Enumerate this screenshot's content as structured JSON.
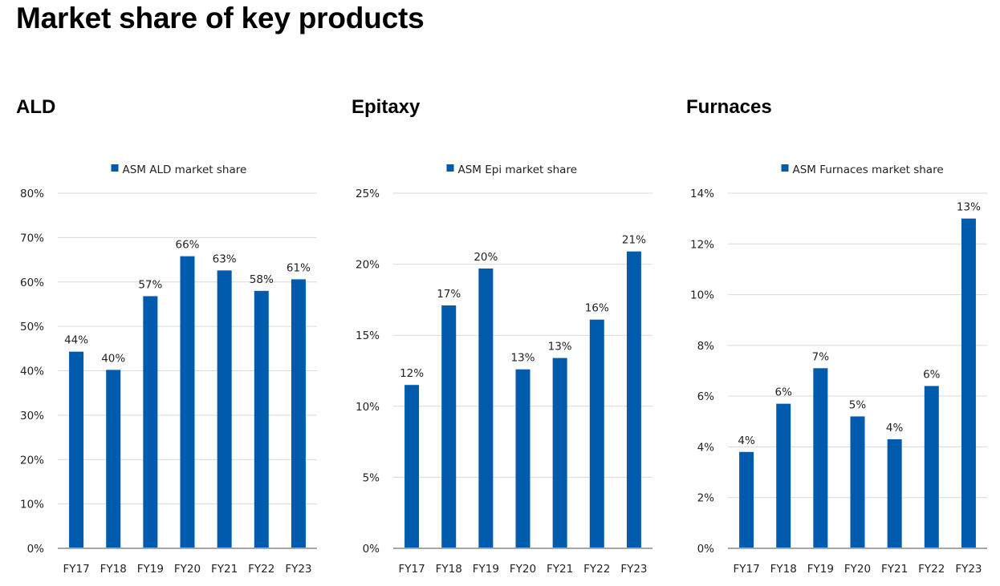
{
  "page": {
    "title": "Market share of key products"
  },
  "colors": {
    "bar": "#005BAC",
    "grid": "#D9D9D9",
    "axis": "#A6A6A6"
  },
  "chart_data": [
    {
      "type": "bar",
      "title": "ALD",
      "legend": "ASM ALD market share",
      "legend_position": "top-center",
      "grid": true,
      "categories": [
        "FY17",
        "FY18",
        "FY19",
        "FY20",
        "FY21",
        "FY22",
        "FY23"
      ],
      "values": [
        44.3,
        40.2,
        56.8,
        65.8,
        62.6,
        58.0,
        60.6
      ],
      "data_labels": [
        "44%",
        "40%",
        "57%",
        "66%",
        "63%",
        "58%",
        "61%"
      ],
      "ylim": [
        0,
        80
      ],
      "yticks": [
        0,
        10,
        20,
        30,
        40,
        50,
        60,
        70,
        80
      ],
      "ytick_labels": [
        "0%",
        "10%",
        "20%",
        "30%",
        "40%",
        "50%",
        "60%",
        "70%",
        "80%"
      ]
    },
    {
      "type": "bar",
      "title": "Epitaxy",
      "legend": "ASM Epi market share",
      "legend_position": "top-center",
      "grid": true,
      "categories": [
        "FY17",
        "FY18",
        "FY19",
        "FY20",
        "FY21",
        "FY22",
        "FY23"
      ],
      "values": [
        11.5,
        17.1,
        19.7,
        12.6,
        13.4,
        16.1,
        20.9
      ],
      "data_labels": [
        "12%",
        "17%",
        "20%",
        "13%",
        "13%",
        "16%",
        "21%"
      ],
      "ylim": [
        0,
        25
      ],
      "yticks": [
        0,
        5,
        10,
        15,
        20,
        25
      ],
      "ytick_labels": [
        "0%",
        "5%",
        "10%",
        "15%",
        "20%",
        "25%"
      ]
    },
    {
      "type": "bar",
      "title": "Furnaces",
      "legend": "ASM Furnaces market share",
      "legend_position": "top-center",
      "grid": true,
      "categories": [
        "FY17",
        "FY18",
        "FY19",
        "FY20",
        "FY21",
        "FY22",
        "FY23"
      ],
      "values": [
        3.8,
        5.7,
        7.1,
        5.2,
        4.3,
        6.4,
        13.0
      ],
      "data_labels": [
        "4%",
        "6%",
        "7%",
        "5%",
        "4%",
        "6%",
        "13%"
      ],
      "ylim": [
        0,
        14
      ],
      "yticks": [
        0,
        2,
        4,
        6,
        8,
        10,
        12,
        14
      ],
      "ytick_labels": [
        "0%",
        "2%",
        "4%",
        "6%",
        "8%",
        "10%",
        "12%",
        "14%"
      ]
    }
  ]
}
